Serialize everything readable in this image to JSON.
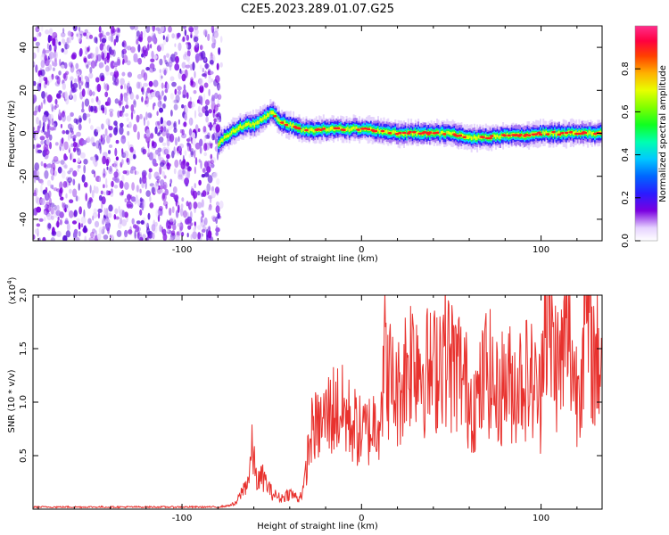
{
  "title": "C2E5.2023.289.01.07.G25",
  "chart_data": [
    {
      "type": "heatmap",
      "xlabel": "Height of straight line (km)",
      "ylabel": "Frequency (Hz)",
      "xlim": [
        -183,
        134
      ],
      "ylim": [
        -50,
        50
      ],
      "xticks": [
        -100,
        0,
        100
      ],
      "yticks": [
        -40,
        -20,
        0,
        20,
        40
      ],
      "colorbar": {
        "label": "Normalized spectral amplitude",
        "range": [
          0,
          1
        ],
        "ticks": [
          "0.0",
          "0.2",
          "0.4",
          "0.6",
          "0.8"
        ]
      },
      "noise_region_x": [
        -183,
        -78
      ],
      "trace": {
        "x": [
          -80,
          -75,
          -70,
          -65,
          -60,
          -55,
          -50,
          -45,
          -40,
          -35,
          -30,
          -20,
          -10,
          0,
          10,
          20,
          30,
          40,
          50,
          60,
          70,
          80,
          90,
          100,
          110,
          120,
          130
        ],
        "freq": [
          -5,
          -1,
          2,
          4,
          4,
          7,
          10,
          5,
          4,
          2,
          1,
          2,
          2,
          2,
          1,
          0,
          0,
          0,
          0,
          -2,
          -2,
          -1,
          -1,
          0,
          0,
          0,
          0
        ]
      }
    },
    {
      "type": "line",
      "xlabel": "Height of straight line (km)",
      "ylabel": "SNR (10 * v/v)",
      "y_multiplier": "(x10^4)",
      "xlim": [
        -183,
        134
      ],
      "ylim": [
        0,
        2.0
      ],
      "xticks": [
        -100,
        0,
        100
      ],
      "yticks": [
        "0.5",
        "1.0",
        "1.5",
        "2.0"
      ],
      "color": "#e8322e",
      "series": [
        {
          "x": [
            -183,
            -80,
            -75,
            -70,
            -67,
            -63,
            -61,
            -58,
            -55,
            -50,
            -45,
            -40,
            -35,
            -32,
            -30,
            -27,
            -25,
            -20,
            -15,
            -10,
            -5,
            0,
            5,
            10,
            13,
            15,
            20,
            25,
            30,
            35,
            40,
            45,
            50,
            55,
            60,
            65,
            70,
            75,
            80,
            85,
            90,
            95,
            100,
            101,
            105,
            110,
            115,
            120,
            125,
            130,
            134
          ],
          "y": [
            0.02,
            0.02,
            0.03,
            0.05,
            0.15,
            0.28,
            0.55,
            0.25,
            0.3,
            0.15,
            0.1,
            0.15,
            0.1,
            0.2,
            0.5,
            0.8,
            0.75,
            0.85,
            0.95,
            0.9,
            0.8,
            0.7,
            0.75,
            0.9,
            1.4,
            1.25,
            1.05,
            1.35,
            1.5,
            1.3,
            1.25,
            1.55,
            1.35,
            1.3,
            1.05,
            1.0,
            1.35,
            1.05,
            1.2,
            1.15,
            1.25,
            1.2,
            1.0,
            2.05,
            1.6,
            1.3,
            1.65,
            1.1,
            1.8,
            1.35,
            1.5
          ]
        }
      ]
    }
  ]
}
